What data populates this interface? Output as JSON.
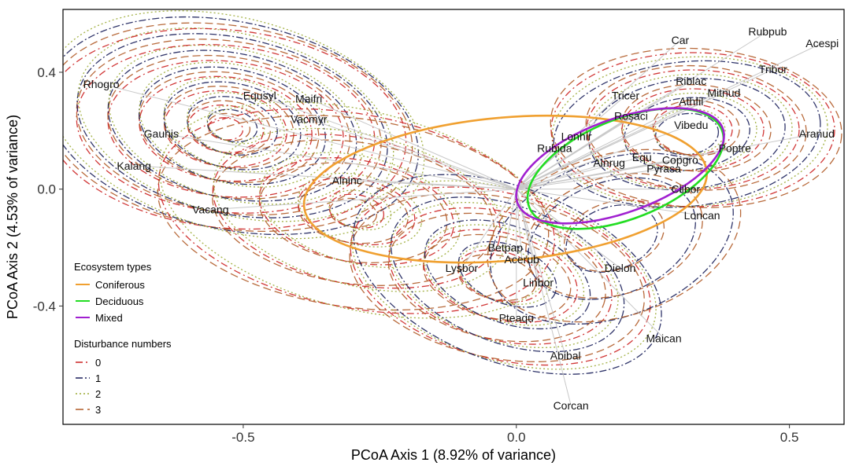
{
  "chart_data": {
    "type": "scatter",
    "xlabel": "PCoA Axis 1 (8.92% of variance)",
    "ylabel": "PCoA Axis 2 (4.53% of variance)",
    "xlim": [
      -0.83,
      0.6
    ],
    "ylim": [
      -0.805,
      0.615
    ],
    "x_ticks": [
      {
        "value": -0.5,
        "label": "-0.5"
      },
      {
        "value": 0.0,
        "label": "0.0"
      },
      {
        "value": 0.5,
        "label": "0.5"
      }
    ],
    "y_ticks": [
      {
        "value": 0.4,
        "label": "0.4"
      },
      {
        "value": 0.0,
        "label": "0.0"
      },
      {
        "value": -0.4,
        "label": "-0.4"
      }
    ],
    "grid": false,
    "origin": [
      0.0,
      0.0
    ],
    "species": [
      {
        "label": "Car",
        "x": 0.3,
        "y": 0.51
      },
      {
        "label": "Rubpub",
        "x": 0.46,
        "y": 0.54
      },
      {
        "label": "Acespi",
        "x": 0.56,
        "y": 0.5
      },
      {
        "label": "Tribor",
        "x": 0.47,
        "y": 0.41
      },
      {
        "label": "Riblac",
        "x": 0.32,
        "y": 0.37
      },
      {
        "label": "Mitnud",
        "x": 0.38,
        "y": 0.33
      },
      {
        "label": "Tricer",
        "x": 0.2,
        "y": 0.32
      },
      {
        "label": "Athfil",
        "x": 0.32,
        "y": 0.3
      },
      {
        "label": "Rosaci",
        "x": 0.21,
        "y": 0.25
      },
      {
        "label": "Vibedu",
        "x": 0.32,
        "y": 0.22
      },
      {
        "label": "Aranud",
        "x": 0.55,
        "y": 0.19
      },
      {
        "label": "Lonhir",
        "x": 0.11,
        "y": 0.18
      },
      {
        "label": "Poptre",
        "x": 0.4,
        "y": 0.14
      },
      {
        "label": "Rubida",
        "x": 0.07,
        "y": 0.14
      },
      {
        "label": "Equ",
        "x": 0.23,
        "y": 0.11
      },
      {
        "label": "Copgro",
        "x": 0.3,
        "y": 0.1
      },
      {
        "label": "Alnrug",
        "x": 0.17,
        "y": 0.09
      },
      {
        "label": "Pyrasa",
        "x": 0.27,
        "y": 0.07
      },
      {
        "label": "Clibor",
        "x": 0.31,
        "y": 0.0
      },
      {
        "label": "Loncan",
        "x": 0.34,
        "y": -0.09
      },
      {
        "label": "Equsyl",
        "x": -0.47,
        "y": 0.32
      },
      {
        "label": "Maifri",
        "x": -0.38,
        "y": 0.31
      },
      {
        "label": "Rhogro",
        "x": -0.76,
        "y": 0.36
      },
      {
        "label": "Vacmyr",
        "x": -0.38,
        "y": 0.24
      },
      {
        "label": "Gauhis",
        "x": -0.65,
        "y": 0.19
      },
      {
        "label": "Kalang",
        "x": -0.7,
        "y": 0.08
      },
      {
        "label": "Alninc",
        "x": -0.31,
        "y": 0.03
      },
      {
        "label": "Vacang",
        "x": -0.56,
        "y": -0.07
      },
      {
        "label": "Betpap",
        "x": -0.02,
        "y": -0.2
      },
      {
        "label": "Acerub",
        "x": 0.01,
        "y": -0.24
      },
      {
        "label": "Lysbor",
        "x": -0.1,
        "y": -0.27
      },
      {
        "label": "Dielon",
        "x": 0.19,
        "y": -0.27
      },
      {
        "label": "Linbor",
        "x": 0.04,
        "y": -0.32
      },
      {
        "label": "Pteaqu",
        "x": 0.0,
        "y": -0.44
      },
      {
        "label": "Maican",
        "x": 0.27,
        "y": -0.51
      },
      {
        "label": "Abibal",
        "x": 0.09,
        "y": -0.57
      },
      {
        "label": "Corcan",
        "x": 0.1,
        "y": -0.74
      }
    ],
    "ellipses": [
      {
        "name": "Coniferous",
        "color": "#f0a030",
        "cx": -0.02,
        "cy": 0.0,
        "rx": 0.37,
        "ry": 0.245,
        "angle": 5
      },
      {
        "name": "Deciduous",
        "color": "#22dd22",
        "cx": 0.2,
        "cy": 0.07,
        "rx": 0.19,
        "ry": 0.17,
        "angle": 22
      },
      {
        "name": "Mixed",
        "color": "#a020d0",
        "cx": 0.19,
        "cy": 0.08,
        "rx": 0.2,
        "ry": 0.16,
        "angle": 20
      }
    ],
    "disturbance_series": [
      {
        "name": "0",
        "color": "#cc2222",
        "dash": "9,4,2,4"
      },
      {
        "name": "1",
        "color": "#1a1f5a",
        "dash": "9,3,2,3"
      },
      {
        "name": "2",
        "color": "#9aaa33",
        "dash": "2,3"
      },
      {
        "name": "3",
        "color": "#b05a26",
        "dash": "10,5"
      }
    ],
    "legend": {
      "ecosystem_title": "Ecosystem types",
      "ecosystem_items": [
        {
          "label": "Coniferous",
          "color": "#f0a030"
        },
        {
          "label": "Deciduous",
          "color": "#22dd22"
        },
        {
          "label": "Mixed",
          "color": "#a020d0"
        }
      ],
      "disturbance_title": "Disturbance numbers",
      "disturbance_items": [
        {
          "label": "0",
          "color": "#cc2222",
          "dash": "9,4,2,4"
        },
        {
          "label": "1",
          "color": "#1a1f5a",
          "dash": "9,3,2,3"
        },
        {
          "label": "2",
          "color": "#9aaa33",
          "dash": "2,3"
        },
        {
          "label": "3",
          "color": "#b05a26",
          "dash": "10,5"
        }
      ],
      "placement": "bottom-left"
    }
  }
}
